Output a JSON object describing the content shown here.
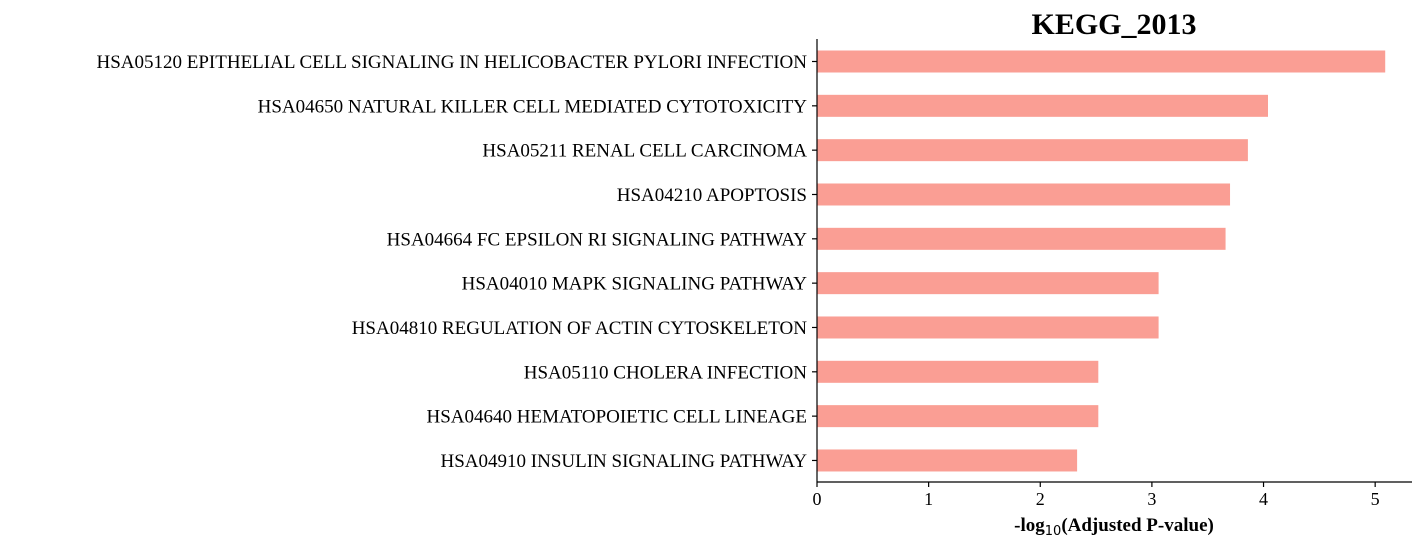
{
  "chart_data": {
    "type": "bar",
    "orientation": "horizontal",
    "title": "KEGG_2013",
    "xlabel_prefix": "-log",
    "xlabel_subscript": "10",
    "xlabel_suffix": "(Adjusted P-value)",
    "ylabel": "",
    "xlim": [
      0,
      5.33
    ],
    "xticks": [
      0,
      1,
      2,
      3,
      4,
      5
    ],
    "bar_color": "#fa9e94",
    "grid": false,
    "legend": "none",
    "categories": [
      "HSA05120 EPITHELIAL CELL SIGNALING IN HELICOBACTER PYLORI INFECTION",
      "HSA04650 NATURAL KILLER CELL MEDIATED CYTOTOXICITY",
      "HSA05211 RENAL CELL CARCINOMA",
      "HSA04210 APOPTOSIS",
      "HSA04664 FC EPSILON RI SIGNALING PATHWAY",
      "HSA04010 MAPK SIGNALING PATHWAY",
      "HSA04810 REGULATION OF ACTIN CYTOSKELETON",
      "HSA05110 CHOLERA INFECTION",
      "HSA04640 HEMATOPOIETIC CELL LINEAGE",
      "HSA04910 INSULIN SIGNALING PATHWAY"
    ],
    "values": [
      5.09,
      4.04,
      3.86,
      3.7,
      3.66,
      3.06,
      3.06,
      2.52,
      2.52,
      2.33
    ]
  }
}
